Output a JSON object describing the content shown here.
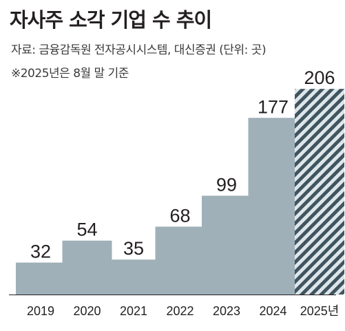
{
  "header": {
    "title": "자사주 소각 기업 수 추이",
    "source": "자료: 금융감독원 전자공시시스템, 대신증권 (단위: 곳)",
    "note": "※2025년은 8월 말 기준"
  },
  "colors": {
    "bar": "#9fb0b8",
    "stripe_dark": "#3f5560",
    "stripe_light": "#dfe6ea",
    "baseline": "#231f20"
  },
  "chart_data": {
    "type": "bar",
    "categories": [
      "2019",
      "2020",
      "2021",
      "2022",
      "2023",
      "2024",
      "2025년"
    ],
    "values": [
      32,
      54,
      35,
      68,
      99,
      177,
      206
    ],
    "title": "자사주 소각 기업 수 추이",
    "xlabel": "",
    "ylabel": "",
    "unit": "곳",
    "ylim": [
      0,
      210
    ],
    "grid": false,
    "highlight_last": "hatched"
  }
}
